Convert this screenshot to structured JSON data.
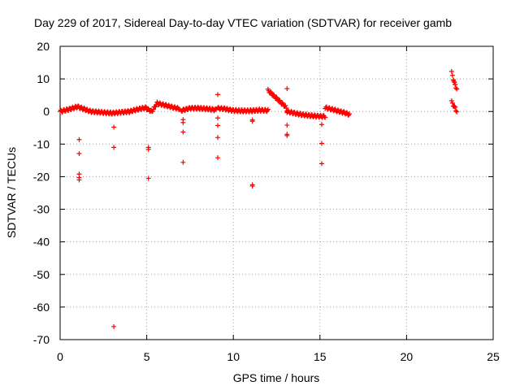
{
  "chart_data": {
    "type": "scatter",
    "title": "Day 229 of 2017, Sidereal Day-to-day VTEC variation (SDTVAR) for receiver gamb",
    "xlabel": "GPS time / hours",
    "ylabel": "SDTVAR / TECUs",
    "xlim": [
      0,
      25
    ],
    "ylim": [
      -70,
      20
    ],
    "xticks": [
      0,
      5,
      10,
      15,
      20,
      25
    ],
    "yticks": [
      -70,
      -60,
      -50,
      -40,
      -30,
      -20,
      -10,
      0,
      10,
      20
    ],
    "xtick_labels": [
      "0",
      "5",
      "10",
      "15",
      "20",
      "25"
    ],
    "ytick_labels": [
      "-70",
      "-60",
      "-50",
      "-40",
      "-30",
      "-20",
      "-10",
      "0",
      "10",
      "20"
    ],
    "grid": true,
    "marker": "+",
    "color": "#ff0000",
    "dense_segments": [
      {
        "x": [
          0.0,
          0.6,
          1.0,
          1.5,
          1.8
        ],
        "y": [
          0.0,
          0.8,
          1.5,
          0.5,
          0.0
        ]
      },
      {
        "x": [
          1.8,
          2.5,
          3.0,
          4.0,
          4.5,
          5.0
        ],
        "y": [
          0.0,
          -0.3,
          -0.5,
          0.0,
          0.7,
          1.2
        ]
      },
      {
        "x": [
          5.0,
          5.3,
          5.6,
          6.0,
          6.5,
          6.9
        ],
        "y": [
          0.8,
          0.0,
          2.5,
          2.0,
          1.3,
          0.8
        ]
      },
      {
        "x": [
          7.0,
          7.5,
          8.0,
          8.5,
          9.0
        ],
        "y": [
          0.3,
          1.0,
          1.0,
          0.8,
          0.5
        ]
      },
      {
        "x": [
          9.1,
          9.5,
          10.0,
          10.5,
          11.0,
          11.5,
          12.0
        ],
        "y": [
          1.0,
          0.8,
          0.3,
          0.2,
          0.2,
          0.4,
          0.3
        ]
      },
      {
        "x": [
          12.0,
          12.2,
          12.5,
          12.8,
          13.0,
          13.1
        ],
        "y": [
          6.5,
          5.5,
          4.0,
          2.5,
          1.5,
          0.5
        ]
      },
      {
        "x": [
          13.1,
          13.5,
          14.0,
          14.5,
          15.0,
          15.3
        ],
        "y": [
          0.0,
          -0.5,
          -1.0,
          -1.3,
          -1.5,
          -1.5
        ]
      },
      {
        "x": [
          15.3,
          15.6,
          16.0,
          16.5,
          16.7
        ],
        "y": [
          1.2,
          0.8,
          0.2,
          -0.5,
          -1.0
        ]
      },
      {
        "x": [
          22.6,
          22.7,
          22.8,
          22.9
        ],
        "y": [
          12.0,
          10.0,
          8.0,
          7.0
        ]
      },
      {
        "x": [
          22.6,
          22.7,
          22.8,
          22.9
        ],
        "y": [
          3.0,
          2.0,
          1.0,
          0.0
        ]
      }
    ],
    "outliers": [
      {
        "x": 1.1,
        "y": -8.6
      },
      {
        "x": 1.1,
        "y": -12.9
      },
      {
        "x": 1.1,
        "y": -19.2
      },
      {
        "x": 1.1,
        "y": -20.3
      },
      {
        "x": 1.1,
        "y": -21.0
      },
      {
        "x": 3.1,
        "y": -4.8
      },
      {
        "x": 3.1,
        "y": -11.0
      },
      {
        "x": 3.1,
        "y": -66.0
      },
      {
        "x": 5.1,
        "y": -11.0
      },
      {
        "x": 5.1,
        "y": -11.6
      },
      {
        "x": 5.1,
        "y": -20.5
      },
      {
        "x": 7.1,
        "y": -2.5
      },
      {
        "x": 7.1,
        "y": -3.4
      },
      {
        "x": 7.1,
        "y": -6.3
      },
      {
        "x": 7.1,
        "y": -15.6
      },
      {
        "x": 9.1,
        "y": 5.2
      },
      {
        "x": 9.1,
        "y": -2.0
      },
      {
        "x": 9.1,
        "y": -4.3
      },
      {
        "x": 9.1,
        "y": -8.0
      },
      {
        "x": 9.1,
        "y": -14.2
      },
      {
        "x": 11.1,
        "y": -2.6
      },
      {
        "x": 11.1,
        "y": -3.0
      },
      {
        "x": 11.1,
        "y": -22.5
      },
      {
        "x": 11.1,
        "y": -22.9
      },
      {
        "x": 13.1,
        "y": 7.0
      },
      {
        "x": 13.1,
        "y": -4.2
      },
      {
        "x": 13.1,
        "y": -7.0
      },
      {
        "x": 13.1,
        "y": -7.4
      },
      {
        "x": 15.1,
        "y": -4.0
      },
      {
        "x": 15.1,
        "y": -9.8
      },
      {
        "x": 15.1,
        "y": -16.0
      }
    ]
  }
}
